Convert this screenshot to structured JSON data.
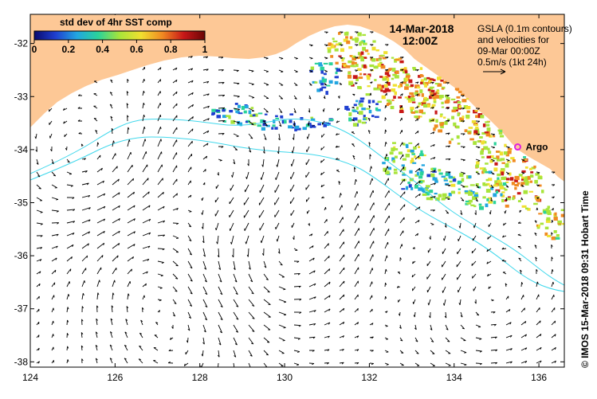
{
  "header": {
    "date": "14-Mar-2018",
    "time": "12:00Z"
  },
  "colorbar": {
    "title": "std dev of 4hr SST comp",
    "ticks": [
      "0",
      "0.2",
      "0.4",
      "0.6",
      "0.8",
      "1"
    ],
    "colors": [
      "#0a0a6e",
      "#1f3fd0",
      "#22a6e0",
      "#2ad39a",
      "#a8e43a",
      "#f0e030",
      "#f08a22",
      "#c81818",
      "#6a0606"
    ]
  },
  "info_box": {
    "line1": "GSLA (0.1m contours)",
    "line2": "and velocities for",
    "line3": "09-Mar 00:00Z",
    "line4": "0.5m/s (1kt 24h)"
  },
  "argo": {
    "label": "Argo",
    "color": "#e020e0",
    "lon": 135.5,
    "lat": -33.95
  },
  "axes": {
    "x_ticks": [
      "124",
      "126",
      "128",
      "130",
      "132",
      "134",
      "136"
    ],
    "y_ticks": [
      "-32",
      "-33",
      "-34",
      "-35",
      "-36",
      "-37",
      "-38"
    ],
    "lon_range": [
      124,
      136.6
    ],
    "lat_range": [
      -38.1,
      -31.45
    ]
  },
  "credit": "© IMOS 15-Mar-2018 09:31 Hobart Time",
  "colors": {
    "land": "#fdc896",
    "contour": "#40d8ec",
    "vector": "#000000"
  }
}
